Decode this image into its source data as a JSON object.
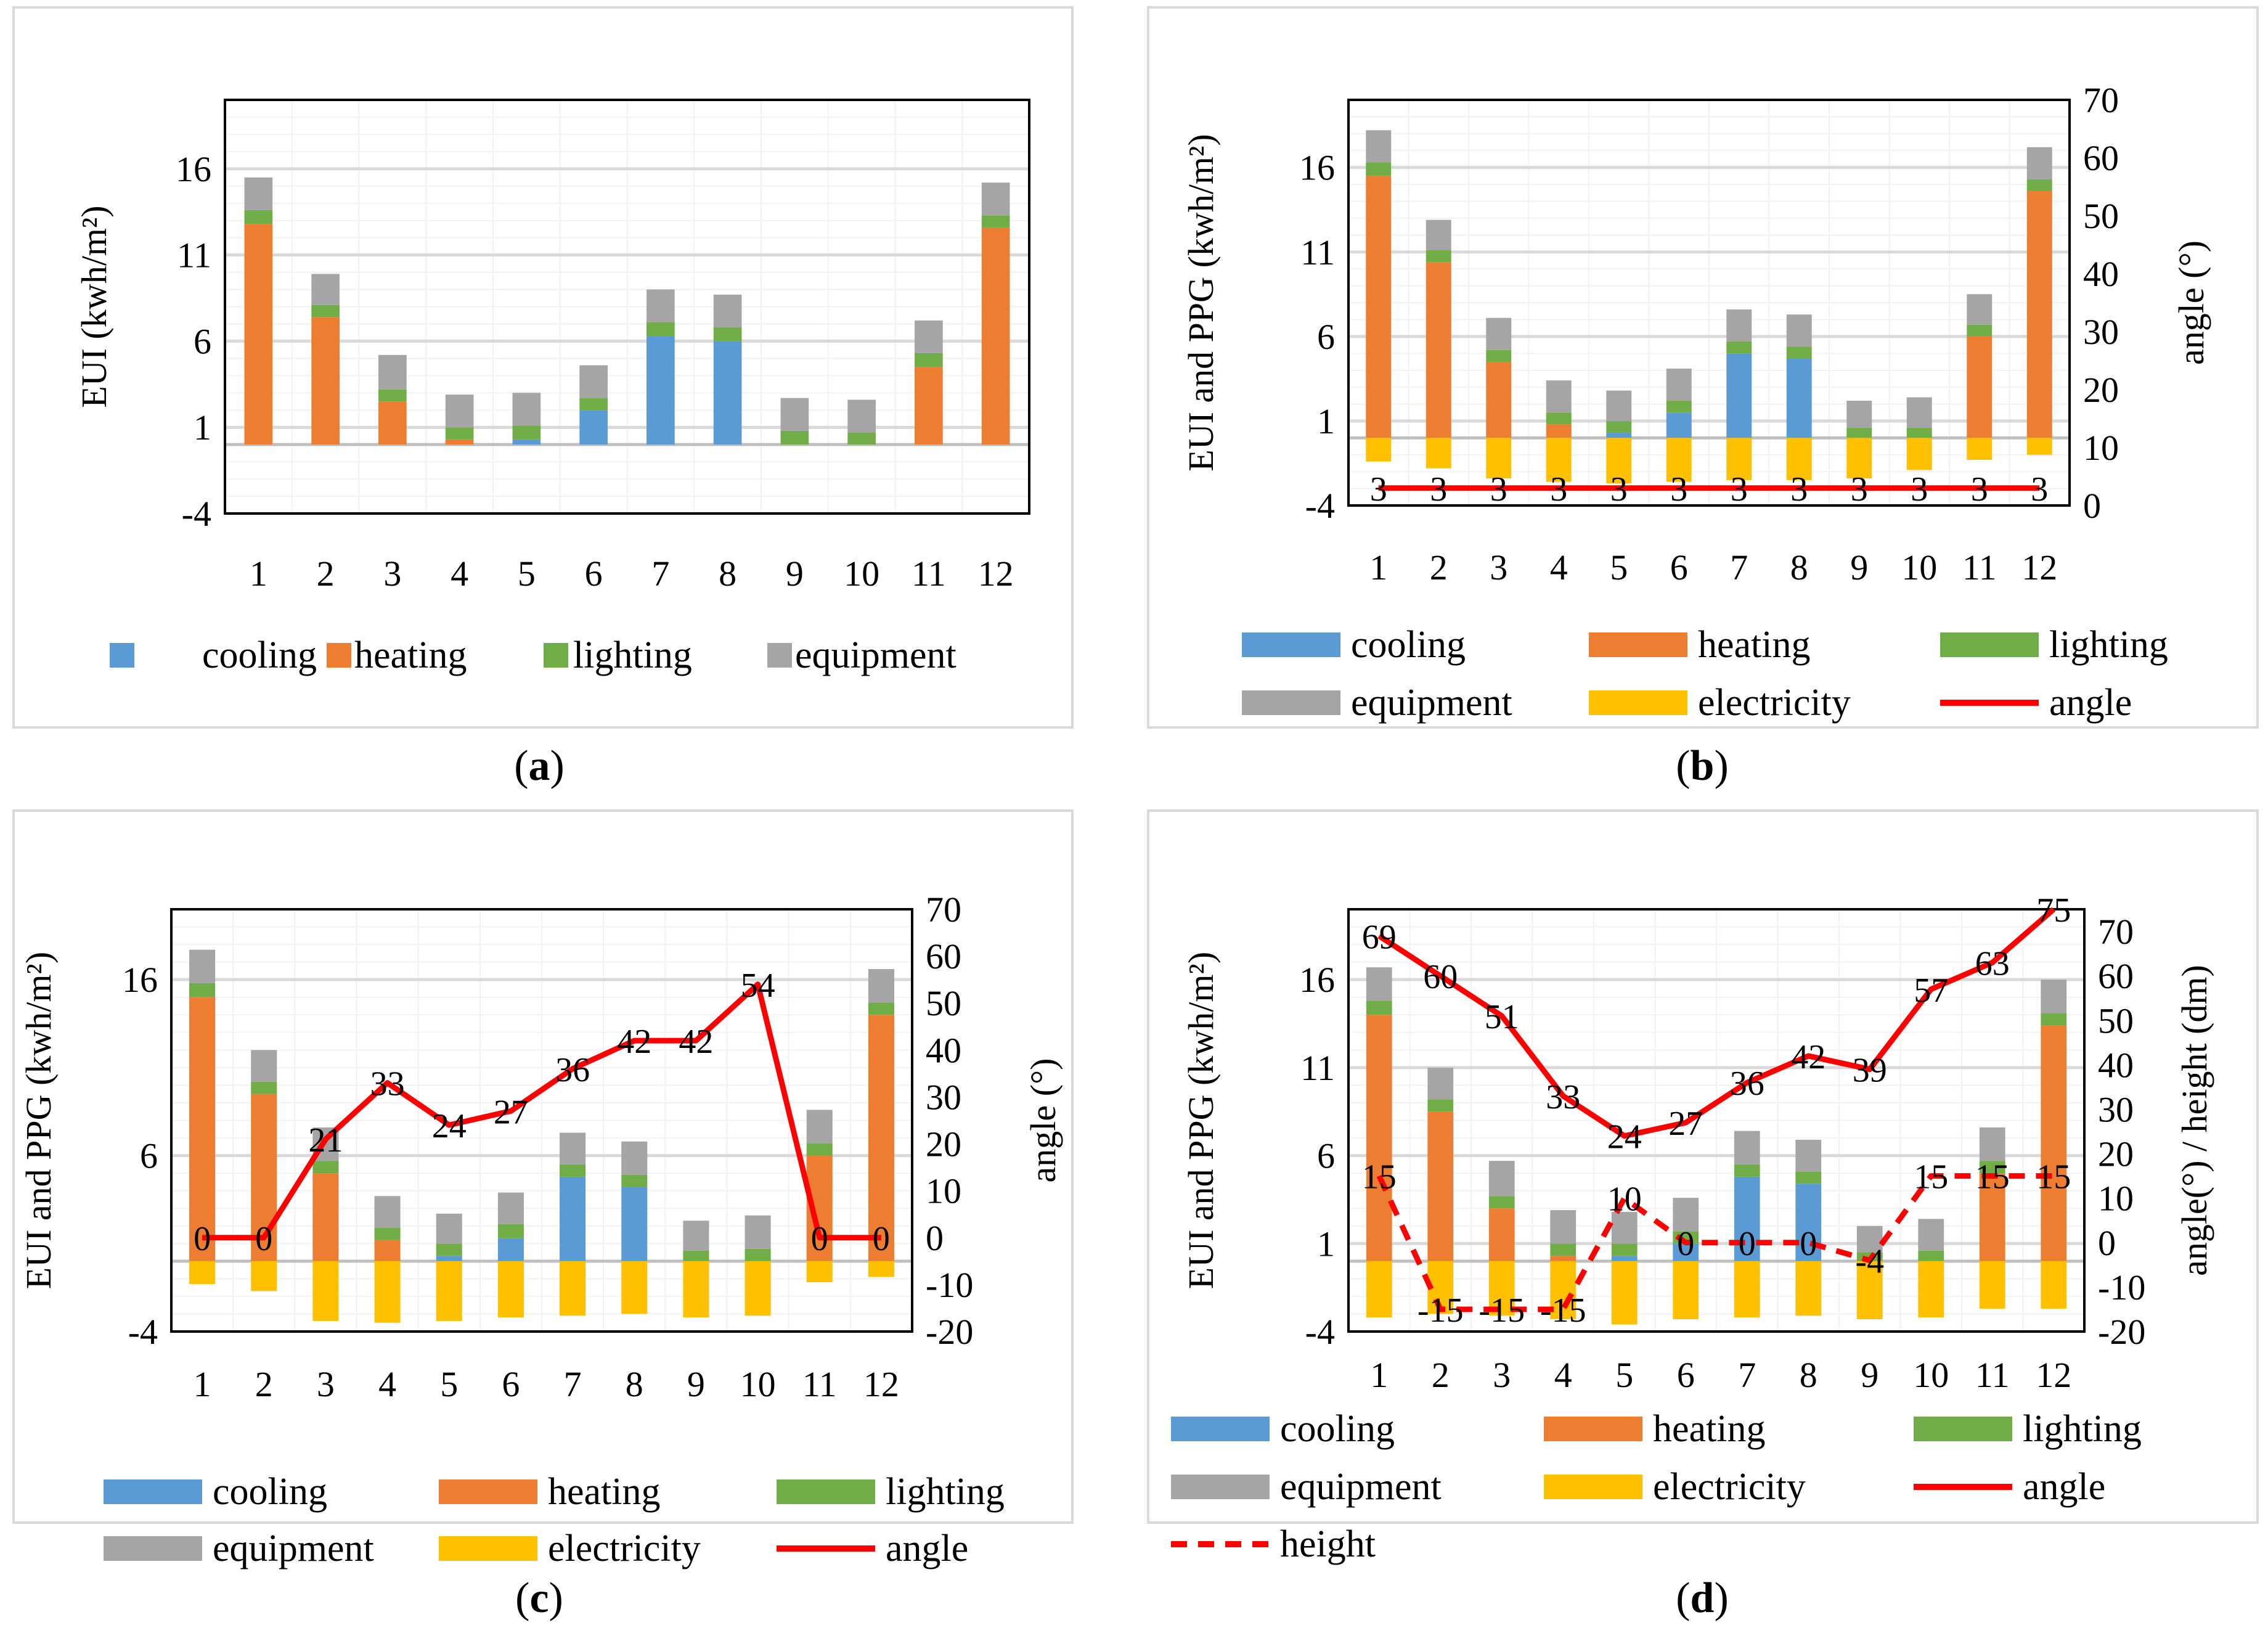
{
  "colors": {
    "cooling": "#5b9bd5",
    "heating": "#ed7d31",
    "lighting": "#70ad47",
    "equipment": "#a5a5a5",
    "electricity": "#ffc000",
    "angle": "#ff0000",
    "height": "#ff0000",
    "grid": "#d9d9d9",
    "frame": "#d9d9d9"
  },
  "chart_data": [
    {
      "panel": "(a)",
      "caption_letter": "a",
      "type": "bar",
      "stacked": true,
      "categories": [
        "1",
        "2",
        "3",
        "4",
        "5",
        "6",
        "7",
        "8",
        "9",
        "10",
        "11",
        "12"
      ],
      "ylabel": "EUI (kwh/m²)",
      "ylim": [
        -4,
        20
      ],
      "yticks": [
        -4,
        1,
        6,
        11,
        16
      ],
      "series": [
        {
          "name": "cooling",
          "key": "cooling",
          "values": [
            0,
            0,
            0,
            0,
            0.3,
            2,
            6.3,
            6,
            0,
            0,
            0,
            0
          ]
        },
        {
          "name": "heating",
          "key": "heating",
          "values": [
            12.8,
            7.4,
            2.5,
            0.3,
            0,
            0,
            0,
            0,
            0,
            0,
            4.5,
            12.6
          ]
        },
        {
          "name": "lighting",
          "key": "lighting",
          "values": [
            0.8,
            0.7,
            0.7,
            0.7,
            0.8,
            0.7,
            0.8,
            0.8,
            0.8,
            0.7,
            0.8,
            0.7
          ]
        },
        {
          "name": "equipment",
          "key": "equipment",
          "values": [
            1.9,
            1.8,
            2.0,
            1.9,
            1.9,
            1.9,
            1.9,
            1.9,
            1.9,
            1.9,
            1.9,
            1.9
          ]
        }
      ],
      "legend_rows": [
        [
          "cooling",
          "heating",
          "lighting",
          "equipment"
        ]
      ]
    },
    {
      "panel": "(b)",
      "caption_letter": "b",
      "type": "bar",
      "stacked": true,
      "categories": [
        "1",
        "2",
        "3",
        "4",
        "5",
        "6",
        "7",
        "8",
        "9",
        "10",
        "11",
        "12"
      ],
      "ylabel": "EUI and PPG   (kwh/m²)",
      "ylabel2": "angle (°)",
      "ylim": [
        -4,
        20
      ],
      "yticks": [
        -4,
        1,
        6,
        11,
        16
      ],
      "y2lim": [
        0,
        70
      ],
      "y2ticks": [
        0,
        10,
        20,
        30,
        40,
        50,
        60,
        70
      ],
      "series": [
        {
          "name": "cooling",
          "key": "cooling",
          "values": [
            0,
            0,
            0,
            0,
            0.3,
            1.5,
            5,
            4.7,
            0,
            0,
            0,
            0
          ]
        },
        {
          "name": "heating",
          "key": "heating",
          "values": [
            15.5,
            10.4,
            4.5,
            0.8,
            0,
            0,
            0,
            0,
            0,
            0,
            6,
            14.6
          ]
        },
        {
          "name": "lighting",
          "key": "lighting",
          "values": [
            0.8,
            0.7,
            0.7,
            0.7,
            0.7,
            0.7,
            0.7,
            0.7,
            0.6,
            0.6,
            0.7,
            0.7
          ]
        },
        {
          "name": "equipment",
          "key": "equipment",
          "values": [
            1.9,
            1.8,
            1.9,
            1.9,
            1.8,
            1.9,
            1.9,
            1.9,
            1.6,
            1.8,
            1.8,
            1.9
          ]
        },
        {
          "name": "electricity",
          "key": "electricity",
          "values": [
            -1.4,
            -1.8,
            -2.4,
            -2.6,
            -2.7,
            -2.6,
            -2.5,
            -2.5,
            -2.4,
            -1.9,
            -1.3,
            -1.0
          ]
        }
      ],
      "lines": [
        {
          "name": "angle",
          "key": "angle",
          "axis": "y2",
          "dashed": false,
          "values": [
            3,
            3,
            3,
            3,
            3,
            3,
            3,
            3,
            3,
            3,
            3,
            3
          ],
          "labels": [
            "3",
            "3",
            "3",
            "3",
            "3",
            "3",
            "3",
            "3",
            "3",
            "3",
            "3",
            "3"
          ]
        }
      ],
      "legend_rows": [
        [
          "cooling",
          "heating",
          "lighting"
        ],
        [
          "equipment",
          "electricity",
          "angle"
        ]
      ]
    },
    {
      "panel": "(c)",
      "caption_letter": "c",
      "type": "bar",
      "stacked": true,
      "categories": [
        "1",
        "2",
        "3",
        "4",
        "5",
        "6",
        "7",
        "8",
        "9",
        "10",
        "11",
        "12"
      ],
      "ylabel": "EUI and PPG   (kwh/m²)",
      "ylabel2": "angle (°)",
      "ylim": [
        -4,
        20
      ],
      "yticks": [
        -4,
        6,
        16
      ],
      "y2lim": [
        -20,
        70
      ],
      "y2ticks": [
        -20,
        -10,
        0,
        10,
        20,
        30,
        40,
        50,
        60,
        70
      ],
      "series": [
        {
          "name": "cooling",
          "key": "cooling",
          "values": [
            0,
            0,
            0,
            0,
            0.3,
            1.3,
            4.8,
            4.2,
            0,
            0,
            0,
            0
          ]
        },
        {
          "name": "heating",
          "key": "heating",
          "values": [
            15,
            9.5,
            5,
            1.2,
            0,
            0,
            0,
            0,
            0,
            0,
            6,
            14
          ]
        },
        {
          "name": "lighting",
          "key": "lighting",
          "values": [
            0.8,
            0.7,
            0.7,
            0.7,
            0.7,
            0.8,
            0.7,
            0.7,
            0.6,
            0.7,
            0.7,
            0.7
          ]
        },
        {
          "name": "equipment",
          "key": "equipment",
          "values": [
            1.9,
            1.8,
            1.9,
            1.8,
            1.7,
            1.8,
            1.8,
            1.9,
            1.7,
            1.9,
            1.9,
            1.9
          ]
        },
        {
          "name": "electricity",
          "key": "electricity",
          "values": [
            -1.3,
            -1.7,
            -3.4,
            -3.5,
            -3.4,
            -3.2,
            -3.1,
            -3.0,
            -3.2,
            -3.1,
            -1.2,
            -0.9
          ]
        }
      ],
      "lines": [
        {
          "name": "angle",
          "key": "angle",
          "axis": "y2",
          "dashed": false,
          "values": [
            0,
            0,
            21,
            33,
            24,
            27,
            36,
            42,
            42,
            54,
            0,
            0
          ],
          "labels": [
            "0",
            "0",
            "21",
            "33",
            "24",
            "27",
            "36",
            "42",
            "42",
            "54",
            "0",
            "0"
          ]
        }
      ],
      "legend_rows": [
        [
          "cooling",
          "heating",
          "lighting"
        ],
        [
          "equipment",
          "electricity",
          "angle"
        ]
      ]
    },
    {
      "panel": "(d)",
      "caption_letter": "d",
      "type": "bar",
      "stacked": true,
      "categories": [
        "1",
        "2",
        "3",
        "4",
        "5",
        "6",
        "7",
        "8",
        "9",
        "10",
        "11",
        "12"
      ],
      "ylabel": "EUI and PPG   (kwh/m²)",
      "ylabel2": "angle(°) / height (dm)",
      "ylim": [
        -4,
        20
      ],
      "yticks": [
        -4,
        1,
        6,
        11,
        16
      ],
      "y2lim": [
        -20,
        75
      ],
      "y2ticks": [
        -20,
        -10,
        0,
        10,
        20,
        30,
        40,
        50,
        60,
        70
      ],
      "series": [
        {
          "name": "cooling",
          "key": "cooling",
          "values": [
            0,
            0,
            0,
            0,
            0.3,
            1,
            4.8,
            4.4,
            0,
            0,
            0,
            0
          ]
        },
        {
          "name": "heating",
          "key": "heating",
          "values": [
            14,
            8.5,
            3,
            0.3,
            0,
            0,
            0,
            0,
            0,
            0,
            5,
            13.4
          ]
        },
        {
          "name": "lighting",
          "key": "lighting",
          "values": [
            0.8,
            0.7,
            0.7,
            0.7,
            0.7,
            0.7,
            0.7,
            0.7,
            0.5,
            0.6,
            0.7,
            0.7
          ]
        },
        {
          "name": "equipment",
          "key": "equipment",
          "values": [
            1.9,
            1.8,
            2.0,
            1.9,
            1.8,
            1.9,
            1.9,
            1.8,
            1.5,
            1.8,
            1.9,
            1.9
          ]
        },
        {
          "name": "electricity",
          "key": "electricity",
          "values": [
            -3.2,
            -3.0,
            -3.1,
            -3.3,
            -3.6,
            -3.3,
            -3.2,
            -3.1,
            -3.3,
            -3.2,
            -2.7,
            -2.7
          ]
        }
      ],
      "lines": [
        {
          "name": "angle",
          "key": "angle",
          "axis": "y2",
          "dashed": false,
          "values": [
            69,
            60,
            51,
            33,
            24,
            27,
            36,
            42,
            39,
            57,
            63,
            75
          ],
          "labels": [
            "69",
            "60",
            "51",
            "33",
            "24",
            "27",
            "36",
            "42",
            "39",
            "57",
            "63",
            "75"
          ]
        },
        {
          "name": "height",
          "key": "height",
          "axis": "y2",
          "dashed": true,
          "values": [
            15,
            -15,
            -15,
            -15,
            10,
            0,
            0,
            0,
            -4,
            15,
            15,
            15
          ],
          "labels": [
            "15",
            "-15",
            "-15",
            "-15",
            "10",
            "0",
            "0",
            "0",
            "-4",
            "15",
            "15",
            "15"
          ]
        }
      ],
      "legend_rows": [
        [
          "cooling",
          "heating",
          "lighting"
        ],
        [
          "equipment",
          "electricity",
          "angle"
        ],
        [
          "height"
        ]
      ]
    }
  ]
}
